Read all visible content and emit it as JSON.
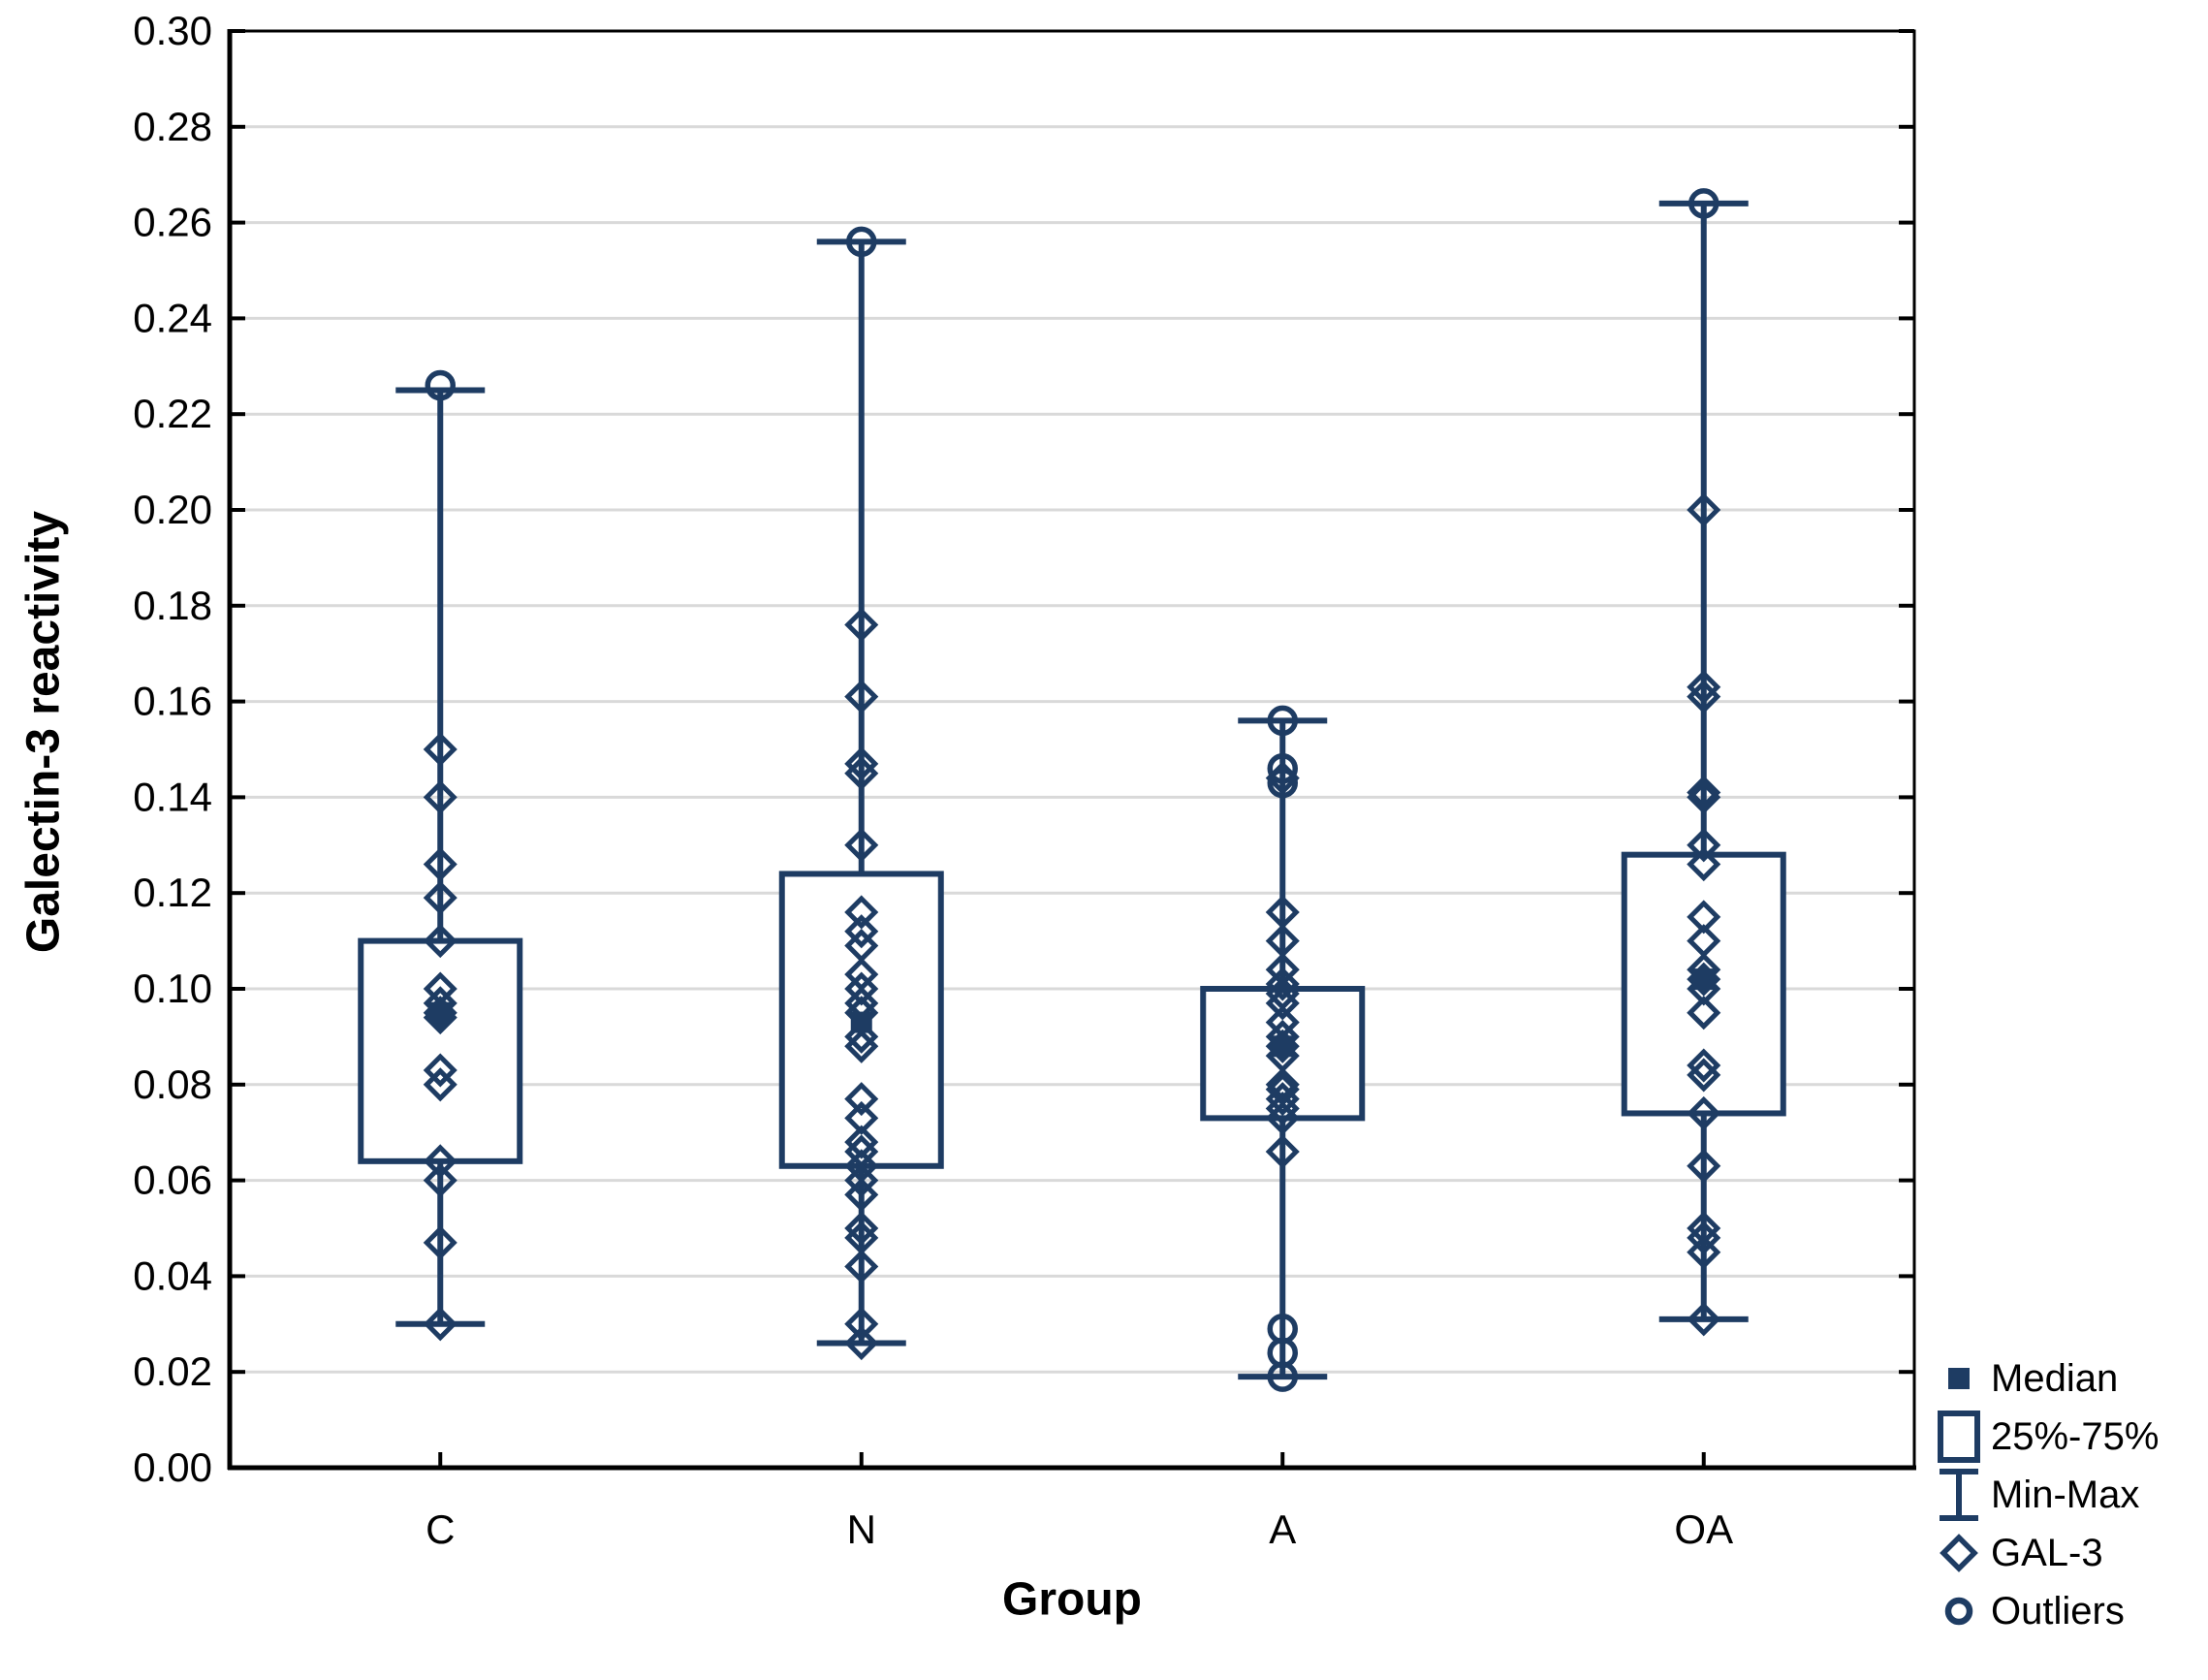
{
  "chart_data": {
    "type": "box",
    "title": "",
    "xlabel": "Group",
    "ylabel": "Galectin-3 reactivity",
    "ylim": [
      0,
      0.3
    ],
    "yticks": [
      "0.00",
      "0.02",
      "0.04",
      "0.06",
      "0.08",
      "0.10",
      "0.12",
      "0.14",
      "0.16",
      "0.18",
      "0.20",
      "0.22",
      "0.24",
      "0.26",
      "0.28",
      "0.30"
    ],
    "categories": [
      "C",
      "N",
      "A",
      "OA"
    ],
    "grid": "horizontal",
    "legend_position": "bottom-right",
    "legend": [
      {
        "label": "Median",
        "symbol": "filled-square"
      },
      {
        "label": "25%-75%",
        "symbol": "open-box"
      },
      {
        "label": "Min-Max",
        "symbol": "whisker"
      },
      {
        "label": "GAL-3",
        "symbol": "open-diamond"
      },
      {
        "label": "Outliers",
        "symbol": "open-circle"
      }
    ],
    "colors": {
      "series": "#1e3c63",
      "gridline": "#d9d9d9",
      "axis": "#000000",
      "background": "#ffffff"
    },
    "groups": [
      {
        "label": "C",
        "min": 0.03,
        "q1": 0.064,
        "median": 0.095,
        "q3": 0.11,
        "max": 0.225,
        "outliers": [
          0.226
        ],
        "points": [
          0.15,
          0.14,
          0.126,
          0.119,
          0.11,
          0.1,
          0.097,
          0.095,
          0.094,
          0.083,
          0.08,
          0.064,
          0.06,
          0.047,
          0.03
        ]
      },
      {
        "label": "N",
        "min": 0.026,
        "q1": 0.063,
        "median": 0.093,
        "q3": 0.124,
        "max": 0.256,
        "outliers": [
          0.256
        ],
        "points": [
          0.176,
          0.161,
          0.147,
          0.145,
          0.13,
          0.116,
          0.112,
          0.109,
          0.103,
          0.1,
          0.097,
          0.095,
          0.09,
          0.088,
          0.077,
          0.073,
          0.068,
          0.066,
          0.063,
          0.06,
          0.057,
          0.05,
          0.048,
          0.042,
          0.03,
          0.026
        ]
      },
      {
        "label": "A",
        "min": 0.019,
        "q1": 0.073,
        "median": 0.088,
        "q3": 0.1,
        "max": 0.156,
        "outliers": [
          0.156,
          0.146,
          0.143,
          0.029,
          0.024,
          0.019
        ],
        "points": [
          0.144,
          0.116,
          0.11,
          0.104,
          0.101,
          0.099,
          0.097,
          0.093,
          0.09,
          0.088,
          0.086,
          0.08,
          0.079,
          0.077,
          0.075,
          0.073,
          0.066
        ]
      },
      {
        "label": "OA",
        "min": 0.031,
        "q1": 0.074,
        "median": 0.102,
        "q3": 0.128,
        "max": 0.264,
        "outliers": [
          0.264
        ],
        "points": [
          0.2,
          0.163,
          0.161,
          0.141,
          0.14,
          0.13,
          0.126,
          0.115,
          0.11,
          0.104,
          0.102,
          0.1,
          0.095,
          0.084,
          0.082,
          0.074,
          0.063,
          0.05,
          0.048,
          0.045,
          0.031
        ]
      }
    ]
  }
}
